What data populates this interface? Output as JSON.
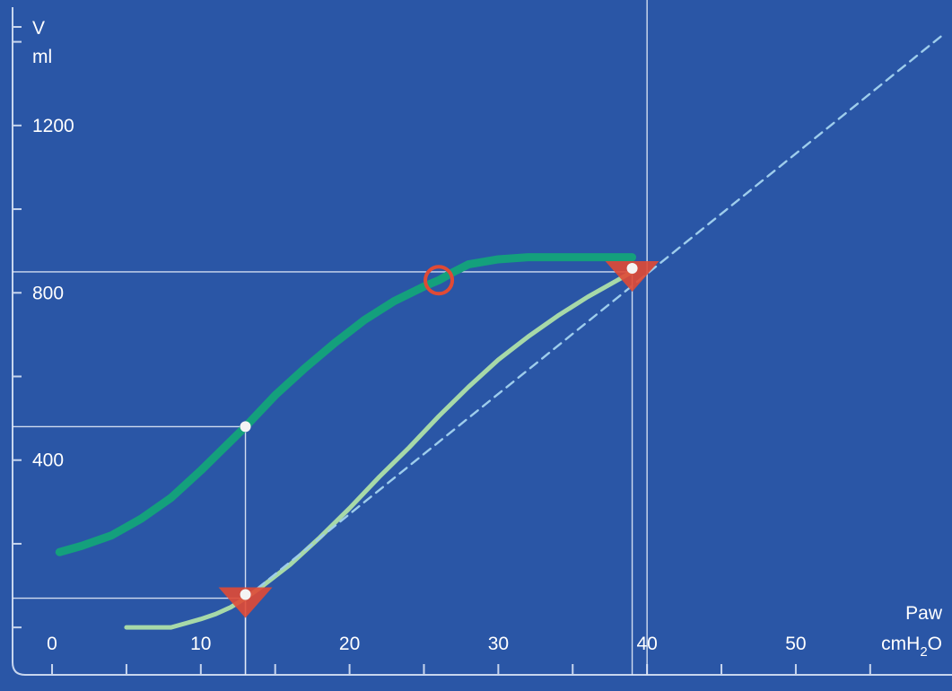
{
  "chart_data": {
    "type": "line",
    "title": "",
    "ylabel_top": "V",
    "ylabel_unit": "ml",
    "xlabel_top": "Paw",
    "xlabel_unit_pre": "cmH",
    "xlabel_unit_sub": "2",
    "xlabel_unit_post": "O",
    "xlim": [
      -3.5,
      60.5
    ],
    "ylim": [
      -152,
      1500
    ],
    "x_tick_labels": [
      "0",
      "10",
      "20",
      "30",
      "40",
      "50"
    ],
    "x_tick_values": [
      0,
      10,
      20,
      30,
      40,
      50
    ],
    "x_minor_ticks": [
      5,
      15,
      25,
      35,
      45,
      55
    ],
    "y_tick_labels": [
      "400",
      "800",
      "1200"
    ],
    "y_tick_values": [
      400,
      800,
      1200
    ],
    "y_minor_ticks": [
      0,
      200,
      600,
      1000,
      1400
    ],
    "grid": false,
    "colors": {
      "background": "#2a56a6",
      "deflation": "#14a07c",
      "inflation": "#a7d9a8",
      "extrapolation": "#9ecdec",
      "marker": "#e04a35"
    },
    "series": [
      {
        "key": "deflation",
        "x": [
          0.5,
          2,
          4,
          6,
          8,
          10,
          12,
          13,
          15,
          17,
          19,
          21,
          23,
          25,
          26,
          27,
          28,
          30,
          32,
          35,
          38,
          39
        ],
        "y": [
          180,
          195,
          220,
          260,
          310,
          375,
          445,
          480,
          555,
          620,
          680,
          735,
          780,
          815,
          830,
          850,
          868,
          880,
          885,
          885,
          885,
          885
        ]
      },
      {
        "key": "inflation",
        "x": [
          5,
          6,
          7,
          8,
          9,
          10,
          11,
          12,
          13,
          14,
          16,
          18,
          20,
          22,
          24,
          26,
          28,
          30,
          32,
          34,
          36,
          38,
          39
        ],
        "y": [
          0,
          0,
          0,
          0,
          10,
          20,
          32,
          48,
          70,
          95,
          150,
          215,
          285,
          360,
          430,
          505,
          575,
          640,
          695,
          745,
          790,
          830,
          850
        ]
      },
      {
        "key": "extrapolation",
        "x": [
          13,
          60
        ],
        "y": [
          70,
          1420
        ]
      }
    ],
    "reference_lines": [
      {
        "x": 13,
        "y": 480
      },
      {
        "x": 13,
        "y": 70
      },
      {
        "x": 39,
        "y": 850
      },
      {
        "x": 40,
        "y": 850
      }
    ],
    "markers": [
      {
        "shape": "triangle",
        "x": 13,
        "y": 70
      },
      {
        "shape": "triangle",
        "x": 39,
        "y": 850
      },
      {
        "shape": "circle",
        "x": 26,
        "y": 830
      },
      {
        "shape": "dot",
        "x": 13,
        "y": 480
      }
    ]
  }
}
